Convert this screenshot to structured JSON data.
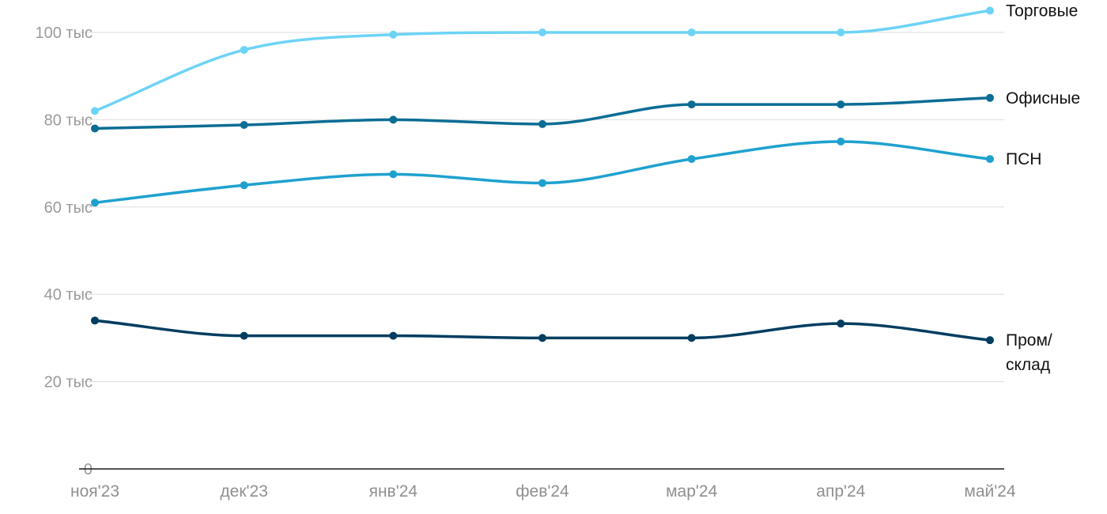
{
  "chart_data": {
    "type": "line",
    "categories": [
      "ноя'23",
      "дек'23",
      "янв'24",
      "фев'24",
      "мар'24",
      "апр'24",
      "май'24"
    ],
    "yticks": [
      {
        "value": 0,
        "label": "0"
      },
      {
        "value": 20000,
        "label": "20 тыс"
      },
      {
        "value": 40000,
        "label": "40 тыс"
      },
      {
        "value": 60000,
        "label": "60 тыс"
      },
      {
        "value": 80000,
        "label": "80 тыс"
      },
      {
        "value": 100000,
        "label": "100 тыс"
      }
    ],
    "ylim": [
      0,
      100000
    ],
    "grid": true,
    "legend": "inline labels at right end of each line",
    "series": [
      {
        "key": "trade",
        "name": "Торговые",
        "label_lines": [
          "Торговые"
        ],
        "color": "#6dd3f7",
        "values": [
          82000,
          96000,
          99500,
          100000,
          100000,
          100000,
          105000
        ]
      },
      {
        "key": "office",
        "name": "Офисные",
        "label_lines": [
          "Офисные"
        ],
        "color": "#0b6d95",
        "values": [
          78000,
          78800,
          80000,
          79000,
          83500,
          83500,
          85000
        ]
      },
      {
        "key": "psn",
        "name": "ПСН",
        "label_lines": [
          "ПСН"
        ],
        "color": "#1fa1cf",
        "values": [
          61000,
          65000,
          67500,
          65500,
          71000,
          75000,
          71000
        ]
      },
      {
        "key": "industrial",
        "name": "Пром/склад",
        "label_lines": [
          "Пром/",
          "склад"
        ],
        "color": "#003d60",
        "values": [
          34000,
          30500,
          30500,
          30000,
          30000,
          33300,
          29500
        ]
      }
    ]
  }
}
